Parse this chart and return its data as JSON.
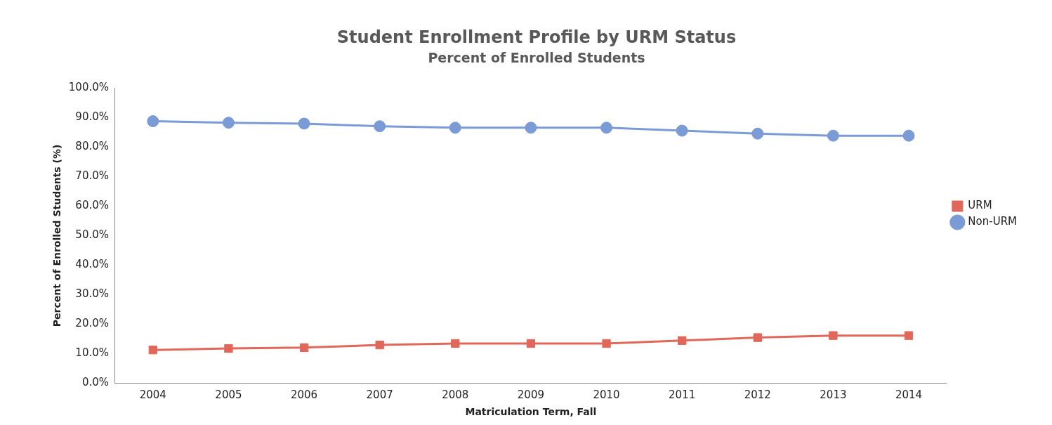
{
  "chart_data": {
    "type": "line",
    "title": "Student Enrollment Profile by URM Status",
    "subtitle": "Percent of Enrolled Students",
    "xlabel": "Matriculation Term, Fall",
    "ylabel": "Percent of Enrolled Students (%)",
    "categories": [
      "2004",
      "2005",
      "2006",
      "2007",
      "2008",
      "2009",
      "2010",
      "2011",
      "2012",
      "2013",
      "2014"
    ],
    "series": [
      {
        "name": "URM",
        "color": "#e0675a",
        "marker": "square",
        "values": [
          11.2,
          11.7,
          12.0,
          12.9,
          13.4,
          13.4,
          13.4,
          14.4,
          15.4,
          16.1,
          16.1
        ]
      },
      {
        "name": "Non-URM",
        "color": "#7b9bd6",
        "marker": "circle",
        "values": [
          88.8,
          88.3,
          88.0,
          87.1,
          86.6,
          86.6,
          86.6,
          85.6,
          84.6,
          83.9,
          83.9
        ]
      }
    ],
    "ylim": [
      0,
      100
    ],
    "yticks": [
      {
        "value": 0,
        "label": "0.0%"
      },
      {
        "value": 10,
        "label": "10.0%"
      },
      {
        "value": 20,
        "label": "20.0%"
      },
      {
        "value": 30,
        "label": "30.0%"
      },
      {
        "value": 40,
        "label": "40.0%"
      },
      {
        "value": 50,
        "label": "50.0%"
      },
      {
        "value": 60,
        "label": "60.0%"
      },
      {
        "value": 70,
        "label": "70.0%"
      },
      {
        "value": 80,
        "label": "80.0%"
      },
      {
        "value": 90,
        "label": "90.0%"
      },
      {
        "value": 100,
        "label": "100.0%"
      }
    ],
    "grid": false,
    "legend": "right",
    "line_style": "solid"
  }
}
